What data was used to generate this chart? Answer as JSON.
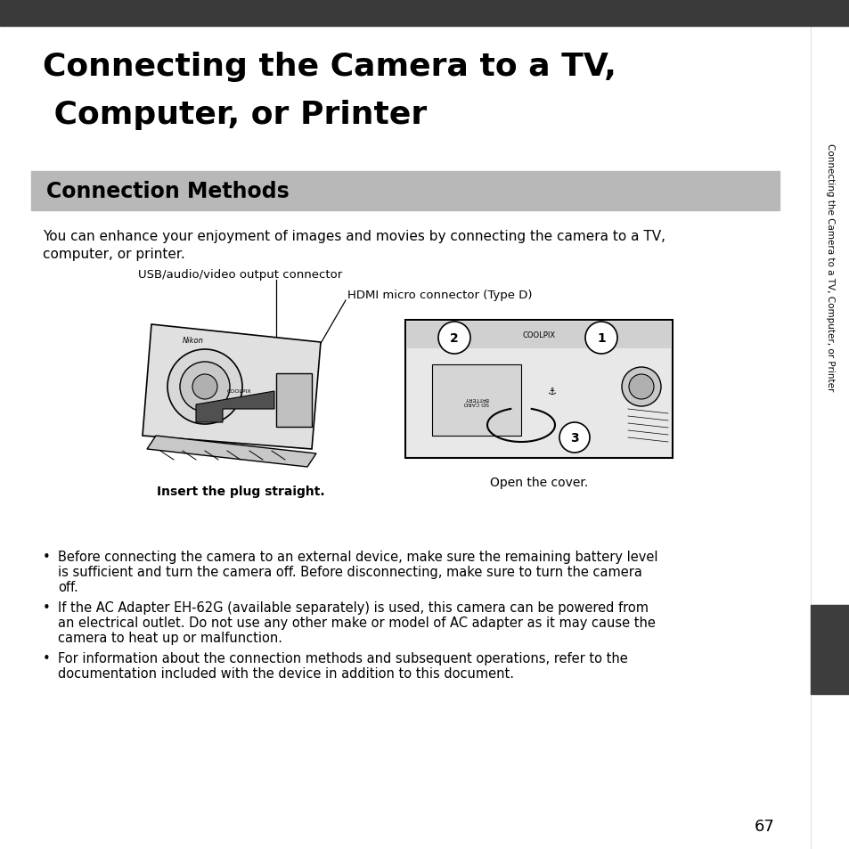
{
  "page_bg": "#ffffff",
  "top_bar_color": "#3a3a3a",
  "title_line1": "Connecting the Camera to a TV,",
  "title_line2": " Computer, or Printer",
  "title_fontsize": 26,
  "section_bar_color": "#b8b8b8",
  "section_text": "Connection Methods",
  "section_fontsize": 17,
  "body_text1": "You can enhance your enjoyment of images and movies by connecting the camera to a TV,",
  "body_text2": "computer, or printer.",
  "body_fontsize": 11,
  "label_usb": "USB/audio/video output connector",
  "label_hdmi": "HDMI micro connector (Type D)",
  "label_insert": "Insert the plug straight.",
  "label_open": "Open the cover.",
  "bullet1_line1": "Before connecting the camera to an external device, make sure the remaining battery level",
  "bullet1_line2": "is sufficient and turn the camera off. Before disconnecting, make sure to turn the camera",
  "bullet1_line3": "off.",
  "bullet2_line1": "If the AC Adapter EH-62G (available separately) is used, this camera can be powered from",
  "bullet2_line2": "an electrical outlet. Do not use any other make or model of AC adapter as it may cause the",
  "bullet2_line3": "camera to heat up or malfunction.",
  "bullet3_line1": "For information about the connection methods and subsequent operations, refer to the",
  "bullet3_line2": "documentation included with the device in addition to this document.",
  "sidebar_text": "Connecting the Camera to a TV, Computer, or Printer",
  "sidebar_tab_color": "#3d3d3d",
  "page_number": "67"
}
